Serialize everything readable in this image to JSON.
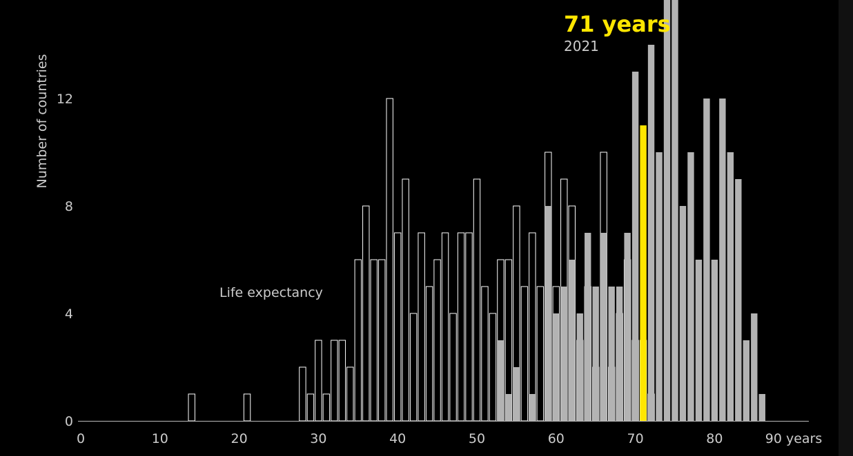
{
  "chart_data": {
    "type": "bar",
    "ylabel": "Number of countries",
    "annotation_label": "Life expectancy",
    "highlight": {
      "value_label": "71 years",
      "year_label": "2021",
      "bin": 71,
      "count": 11,
      "color": "#ffe600"
    },
    "x_unit_label": "90 years",
    "xlim": [
      0,
      92
    ],
    "ylim": [
      0,
      15.8
    ],
    "x_ticks": [
      0,
      10,
      20,
      30,
      40,
      50,
      60,
      70,
      80
    ],
    "x_tick_labels": [
      "0",
      "10",
      "20",
      "30",
      "40",
      "50",
      "60",
      "70",
      "80"
    ],
    "y_ticks": [
      0,
      4,
      8,
      12
    ],
    "y_tick_labels": [
      "0",
      "4",
      "8",
      "12"
    ],
    "grid": false,
    "colors": {
      "background": "#000000",
      "outline": "#ffffff",
      "filled": "#b3b3b3",
      "text": "#cccccc",
      "highlight": "#ffe600"
    },
    "series": [
      {
        "values": [
          [
            14,
            1
          ],
          [
            21,
            1
          ],
          [
            28,
            2
          ],
          [
            29,
            1
          ],
          [
            30,
            3
          ],
          [
            31,
            1
          ],
          [
            32,
            3
          ],
          [
            33,
            3
          ],
          [
            34,
            2
          ],
          [
            35,
            6
          ],
          [
            36,
            8
          ],
          [
            37,
            6
          ],
          [
            38,
            6
          ],
          [
            39,
            12
          ],
          [
            40,
            7
          ],
          [
            41,
            9
          ],
          [
            42,
            4
          ],
          [
            43,
            7
          ],
          [
            44,
            5
          ],
          [
            45,
            6
          ],
          [
            46,
            7
          ],
          [
            47,
            4
          ],
          [
            48,
            7
          ],
          [
            49,
            7
          ],
          [
            50,
            9
          ],
          [
            51,
            5
          ],
          [
            52,
            4
          ],
          [
            53,
            6
          ],
          [
            54,
            6
          ],
          [
            55,
            8
          ],
          [
            56,
            5
          ],
          [
            57,
            7
          ],
          [
            58,
            5
          ],
          [
            59,
            10
          ],
          [
            60,
            5
          ],
          [
            61,
            9
          ],
          [
            62,
            8
          ],
          [
            63,
            3
          ],
          [
            64,
            5
          ],
          [
            65,
            2
          ],
          [
            66,
            10
          ],
          [
            67,
            2
          ],
          [
            68,
            4
          ],
          [
            69,
            6
          ],
          [
            70,
            3
          ],
          [
            71,
            3
          ],
          [
            72,
            1
          ]
        ]
      },
      {
        "values": [
          [
            53,
            3
          ],
          [
            54,
            1
          ],
          [
            55,
            2
          ],
          [
            57,
            1
          ],
          [
            59,
            8
          ],
          [
            60,
            4
          ],
          [
            61,
            5
          ],
          [
            62,
            6
          ],
          [
            63,
            4
          ],
          [
            64,
            7
          ],
          [
            65,
            5
          ],
          [
            66,
            7
          ],
          [
            67,
            5
          ],
          [
            68,
            5
          ],
          [
            69,
            7
          ],
          [
            70,
            13
          ],
          [
            72,
            14
          ],
          [
            73,
            10
          ],
          [
            74,
            16
          ],
          [
            75,
            16
          ],
          [
            76,
            8
          ],
          [
            77,
            10
          ],
          [
            78,
            6
          ],
          [
            79,
            12
          ],
          [
            80,
            6
          ],
          [
            81,
            12
          ],
          [
            82,
            10
          ],
          [
            83,
            9
          ],
          [
            84,
            3
          ],
          [
            85,
            4
          ],
          [
            86,
            1
          ]
        ]
      }
    ]
  }
}
